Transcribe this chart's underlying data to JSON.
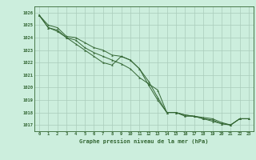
{
  "x": [
    0,
    1,
    2,
    3,
    4,
    5,
    6,
    7,
    8,
    9,
    10,
    11,
    12,
    13,
    14,
    15,
    16,
    17,
    18,
    19,
    20,
    21,
    22,
    23
  ],
  "line1": [
    1025.8,
    1025.0,
    1024.8,
    1024.1,
    1024.0,
    1023.6,
    1023.2,
    1023.0,
    1022.6,
    1022.5,
    1022.2,
    1021.5,
    1020.5,
    1019.2,
    1018.0,
    1018.0,
    1017.8,
    1017.7,
    1017.6,
    1017.5,
    1017.2,
    1017.0,
    1017.5,
    1017.5
  ],
  "line2": [
    1025.8,
    1024.8,
    1024.6,
    1024.0,
    1023.8,
    1023.2,
    1022.8,
    1022.5,
    1022.2,
    1021.9,
    1021.5,
    1020.8,
    1020.3,
    1019.8,
    1018.0,
    1018.0,
    1017.8,
    1017.7,
    1017.5,
    1017.4,
    1017.1,
    1017.0,
    1017.5,
    1017.5
  ],
  "line3": [
    1025.8,
    1024.8,
    1024.5,
    1024.0,
    1023.5,
    1023.0,
    1022.5,
    1022.0,
    1021.8,
    1022.5,
    1022.2,
    1021.5,
    1020.2,
    1019.0,
    1018.0,
    1018.0,
    1017.7,
    1017.7,
    1017.5,
    1017.3,
    1017.1,
    1017.0,
    1017.5,
    1017.5
  ],
  "bg_color": "#cceedd",
  "grid_color": "#aaccbb",
  "line_color": "#336633",
  "xlabel": "Graphe pression niveau de la mer (hPa)",
  "ylim_min": 1016.5,
  "ylim_max": 1026.5,
  "xlim_min": -0.5,
  "xlim_max": 23.5,
  "yticks": [
    1017,
    1018,
    1019,
    1020,
    1021,
    1022,
    1023,
    1024,
    1025,
    1026
  ],
  "xticks": [
    0,
    1,
    2,
    3,
    4,
    5,
    6,
    7,
    8,
    9,
    10,
    11,
    12,
    13,
    14,
    15,
    16,
    17,
    18,
    19,
    20,
    21,
    22,
    23
  ]
}
